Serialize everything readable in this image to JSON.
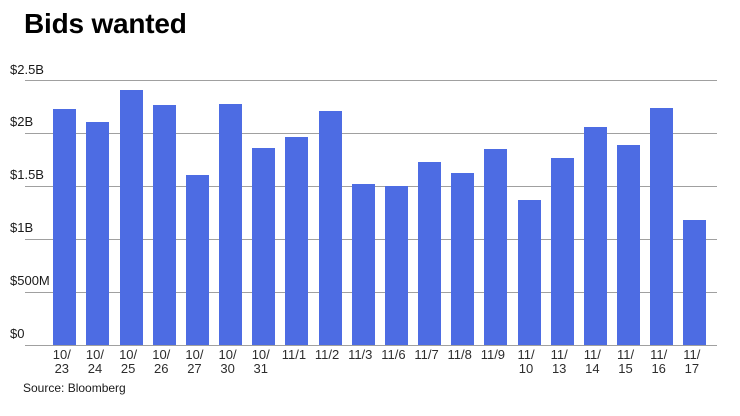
{
  "title": "Bids wanted",
  "source": "Source: Bloomberg",
  "colors": {
    "bar": "#4d6ce3",
    "gridline": "#a0a0a0",
    "title_text": "#000000",
    "axis_text": "#2d2d2d"
  },
  "chart_data": {
    "type": "bar",
    "title": "Bids wanted",
    "unit": "USD billions",
    "categories": [
      "10/23",
      "10/24",
      "10/25",
      "10/26",
      "10/27",
      "10/30",
      "10/31",
      "11/1",
      "11/2",
      "11/3",
      "11/6",
      "11/7",
      "11/8",
      "11/9",
      "11/10",
      "11/13",
      "11/14",
      "11/15",
      "11/16",
      "11/17"
    ],
    "values": [
      2.23,
      2.11,
      2.41,
      2.27,
      1.61,
      2.28,
      1.86,
      1.97,
      2.21,
      1.52,
      1.5,
      1.73,
      1.63,
      1.85,
      1.37,
      1.77,
      2.06,
      1.89,
      2.24,
      1.18
    ],
    "x_tick_lines": [
      [
        "10/",
        "23"
      ],
      [
        "10/",
        "24"
      ],
      [
        "10/",
        "25"
      ],
      [
        "10/",
        "26"
      ],
      [
        "10/",
        "27"
      ],
      [
        "10/",
        "30"
      ],
      [
        "10/",
        "31"
      ],
      [
        "11/1"
      ],
      [
        "11/2"
      ],
      [
        "11/3"
      ],
      [
        "11/6"
      ],
      [
        "11/7"
      ],
      [
        "11/8"
      ],
      [
        "11/9"
      ],
      [
        "11/",
        "10"
      ],
      [
        "11/",
        "13"
      ],
      [
        "11/",
        "14"
      ],
      [
        "11/",
        "15"
      ],
      [
        "11/",
        "16"
      ],
      [
        "11/",
        "17"
      ]
    ],
    "yticks": [
      {
        "value": 0,
        "label": "$0"
      },
      {
        "value": 0.5,
        "label": "$500M"
      },
      {
        "value": 1,
        "label": "$1B"
      },
      {
        "value": 1.5,
        "label": "$1.5B"
      },
      {
        "value": 2,
        "label": "$2B"
      },
      {
        "value": 2.5,
        "label": "$2.5B"
      }
    ],
    "ylim": [
      0,
      2.5
    ],
    "grid": true,
    "legend": false,
    "source": "Source: Bloomberg"
  }
}
